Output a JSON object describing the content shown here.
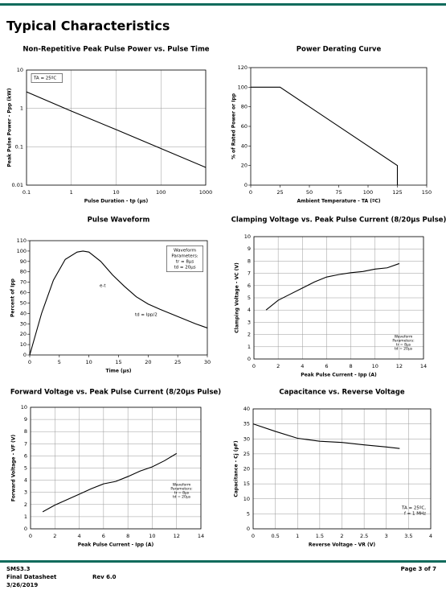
{
  "header": {
    "title": "Typical Characteristics"
  },
  "chart_data": [
    {
      "type": "line",
      "title": "Non-Repetitive Peak Pulse Power vs. Pulse Time",
      "x_label": "Pulse Duration - tp (µs)",
      "y_label": "Peak Pulse Power - Ppp (kW)",
      "x": [
        0.1,
        1,
        10,
        100,
        1000
      ],
      "values": [
        2.7,
        0.85,
        0.28,
        0.09,
        0.029
      ],
      "color": "#000000",
      "x_scale": "log",
      "y_scale": "log",
      "xlim": [
        0.1,
        1000
      ],
      "xticks": [
        0.1,
        1,
        10,
        100,
        1000
      ],
      "ylim": [
        0.01,
        10
      ],
      "yticks": [
        0.01,
        0.1,
        1,
        10
      ],
      "grid": true,
      "annotations": [
        [
          "TA = 25ºC"
        ]
      ]
    },
    {
      "type": "line",
      "title": "Power Derating Curve",
      "x_label": "Ambient Temperature - TA (ºC)",
      "y_label": "% of Rated Power or Ipp",
      "x": [
        0,
        25,
        125,
        125
      ],
      "values": [
        100,
        100,
        20,
        0
      ],
      "color": "#000000",
      "xlim": [
        0,
        150
      ],
      "xticks": [
        0,
        25,
        50,
        75,
        100,
        125,
        150
      ],
      "ylim": [
        0,
        120
      ],
      "yticks": [
        0,
        20,
        40,
        60,
        80,
        100,
        120
      ],
      "grid": false,
      "annotations": []
    },
    {
      "type": "line",
      "title": "Pulse Waveform",
      "x_label": "Time (µs)",
      "y_label": "Percent of Ipp",
      "x": [
        0,
        2,
        4,
        6,
        8,
        9,
        10,
        12,
        14,
        16,
        18,
        20,
        22,
        25,
        28,
        30
      ],
      "values": [
        0,
        40,
        72,
        92,
        99,
        100,
        99,
        90,
        77,
        66,
        56,
        49,
        44,
        37,
        30,
        26
      ],
      "color": "#000000",
      "xlim": [
        0,
        30
      ],
      "xticks": [
        0,
        5,
        10,
        15,
        20,
        25,
        30
      ],
      "ylim": [
        0,
        110
      ],
      "yticks": [
        0,
        10,
        20,
        30,
        40,
        50,
        60,
        70,
        80,
        90,
        100,
        110
      ],
      "grid": false,
      "annotations": [
        [
          "Waveform",
          "Parameters:",
          "tr = 8µs",
          "td = 20µs"
        ],
        [
          "e-t"
        ],
        [
          "td = Ipp/2"
        ]
      ]
    },
    {
      "type": "line",
      "title": "Clamping Voltage vs. Peak Pulse Current (8/20µs Pulse)",
      "x_label": "Peak Pulse Current - Ipp (A)",
      "y_label": "Clamping Voltage - VC (V)",
      "x": [
        1,
        2,
        3,
        4,
        5,
        6,
        7,
        8,
        9,
        10,
        11,
        12
      ],
      "values": [
        4.0,
        4.8,
        5.3,
        5.8,
        6.3,
        6.7,
        6.9,
        7.05,
        7.15,
        7.35,
        7.45,
        7.8
      ],
      "color": "#000000",
      "xlim": [
        0,
        14
      ],
      "xticks": [
        0,
        2,
        4,
        6,
        8,
        10,
        12,
        14
      ],
      "ylim": [
        0,
        10
      ],
      "yticks": [
        0,
        1,
        2,
        3,
        4,
        5,
        6,
        7,
        8,
        9,
        10
      ],
      "grid": true,
      "annotations": [
        [
          "Waveform",
          "Parameters:",
          "tr = 8µs",
          "td = 20µs"
        ]
      ]
    },
    {
      "type": "line",
      "title": "Forward Voltage vs. Peak Pulse Current (8/20µs Pulse)",
      "x_label": "Peak Pulse Current - Ipp (A)",
      "y_label": "Forward Voltage - VF (V)",
      "x": [
        1,
        2,
        3,
        4,
        5,
        6,
        7,
        8,
        9,
        10,
        11,
        12
      ],
      "values": [
        1.4,
        1.95,
        2.4,
        2.85,
        3.3,
        3.7,
        3.9,
        4.3,
        4.75,
        5.1,
        5.6,
        6.2
      ],
      "color": "#000000",
      "xlim": [
        0,
        14
      ],
      "xticks": [
        0,
        2,
        4,
        6,
        8,
        10,
        12,
        14
      ],
      "ylim": [
        0,
        10
      ],
      "yticks": [
        0,
        1,
        2,
        3,
        4,
        5,
        6,
        7,
        8,
        9,
        10
      ],
      "grid": true,
      "annotations": [
        [
          "Waveform",
          "Parameters:",
          "tr = 8µs",
          "td = 20µs"
        ]
      ]
    },
    {
      "type": "line",
      "title": "Capacitance vs. Reverse Voltage",
      "x_label": "Reverse Voltage - VR (V)",
      "y_label": "Capacitance - Cj (pF)",
      "x": [
        0,
        0.5,
        1,
        1.5,
        2,
        2.5,
        3,
        3.3
      ],
      "values": [
        35,
        32.5,
        30.2,
        29.2,
        28.8,
        28,
        27.3,
        26.8
      ],
      "color": "#000000",
      "xlim": [
        0,
        4
      ],
      "xticks": [
        0,
        0.5,
        1,
        1.5,
        2,
        2.5,
        3,
        3.5,
        4
      ],
      "ylim": [
        0,
        40
      ],
      "yticks": [
        0,
        5,
        10,
        15,
        20,
        25,
        30,
        35,
        40
      ],
      "grid": true,
      "annotations": [
        [
          "TA = 25ºC,",
          "f = 1 MHz"
        ]
      ]
    }
  ],
  "footer": {
    "part": "SMS3.3",
    "status": "Final Datasheet",
    "revision": "Rev 6.0",
    "date": "3/26/2019",
    "page": "Page 3 of 7"
  }
}
